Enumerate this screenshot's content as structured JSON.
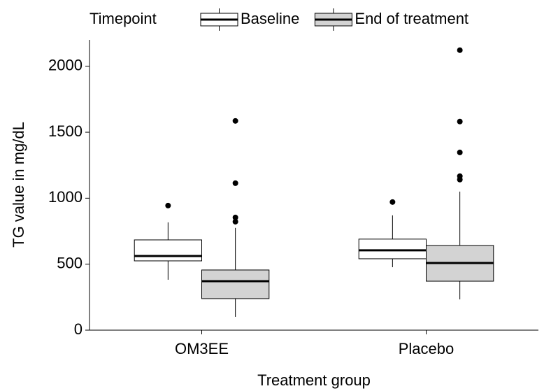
{
  "chart_data": {
    "type": "boxplot",
    "x_label": "Treatment group",
    "y_label": "TG value in mg/dL",
    "legend_title": "Timepoint",
    "legend_position": "top",
    "categories": [
      "OM3EE",
      "Placebo"
    ],
    "ylim": [
      0,
      2200
    ],
    "yticks": [
      0,
      500,
      1000,
      1500,
      2000
    ],
    "series": [
      {
        "name": "Baseline",
        "color": "#ffffff",
        "boxes": [
          {
            "whislo": 382,
            "q1": 525,
            "med": 562,
            "q3": 684,
            "whishi": 817,
            "fliers": [
              944
            ]
          },
          {
            "whislo": 477,
            "q1": 541,
            "med": 605,
            "q3": 690,
            "whishi": 870,
            "fliers": [
              971
            ]
          }
        ]
      },
      {
        "name": "End of treatment",
        "color": "#d3d3d3",
        "boxes": [
          {
            "whislo": 101,
            "q1": 239,
            "med": 371,
            "q3": 456,
            "whishi": 775,
            "fliers": [
              822,
              854,
              1114,
              1586
            ]
          },
          {
            "whislo": 233,
            "q1": 371,
            "med": 509,
            "q3": 642,
            "whishi": 1050,
            "fliers": [
              1141,
              1167,
              1347,
              1581,
              2122
            ]
          }
        ]
      }
    ]
  }
}
